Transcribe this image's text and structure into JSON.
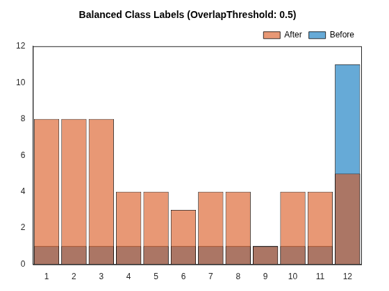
{
  "chart_data": {
    "type": "bar",
    "title": "Balanced Class Labels (OverlapThreshold: 0.5)",
    "categories": [
      1,
      2,
      3,
      4,
      5,
      6,
      7,
      8,
      9,
      10,
      11,
      12
    ],
    "series": [
      {
        "name": "Before",
        "color": "#0072bd",
        "values": [
          1,
          1,
          1,
          1,
          1,
          1,
          1,
          1,
          1,
          1,
          1,
          11
        ]
      },
      {
        "name": "After",
        "color": "#d95319",
        "values": [
          8,
          8,
          8,
          4,
          4,
          3,
          4,
          4,
          1,
          4,
          4,
          5
        ]
      }
    ],
    "ylim": [
      0,
      12
    ],
    "yticks": [
      0,
      2,
      4,
      6,
      8,
      10,
      12
    ],
    "grid": false,
    "legend": "northeast"
  }
}
